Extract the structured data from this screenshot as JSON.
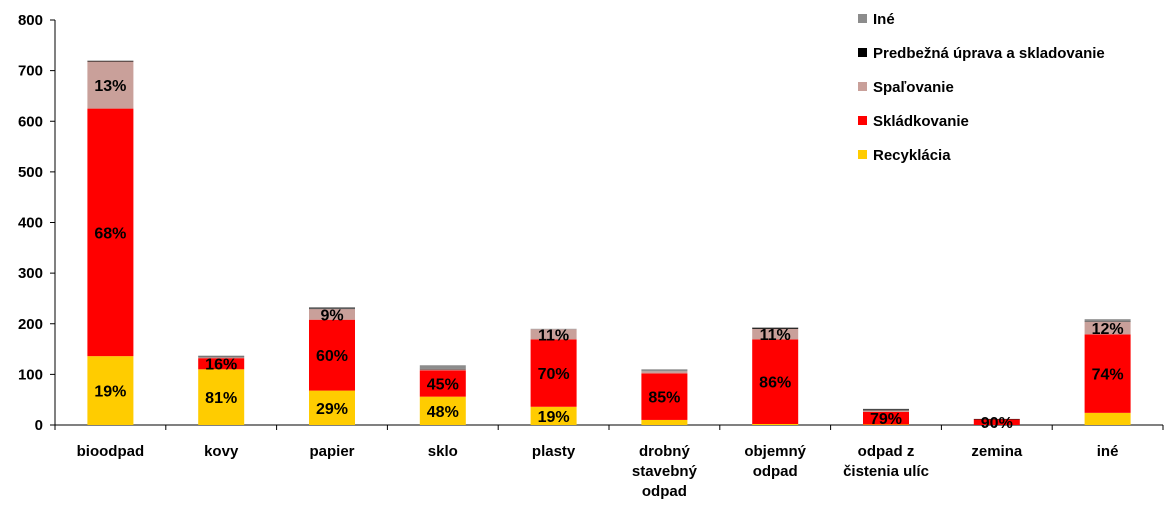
{
  "chart_data": {
    "type": "bar",
    "stacked": true,
    "categories": [
      [
        "bioodpad"
      ],
      [
        "kovy"
      ],
      [
        "papier"
      ],
      [
        "sklo"
      ],
      [
        "plasty"
      ],
      [
        "drobný",
        "stavebný",
        "odpad"
      ],
      [
        "objemný",
        "odpad"
      ],
      [
        "odpad z",
        "čistenia ulíc"
      ],
      [
        "zemina"
      ],
      [
        "iné"
      ]
    ],
    "series": [
      {
        "name": "Recyklácia",
        "color": "#FFCC00",
        "values": [
          136,
          110,
          68,
          56,
          36,
          10,
          2,
          1,
          0,
          24
        ],
        "labels": [
          "19%",
          "81%",
          "29%",
          "48%",
          "19%",
          "",
          "",
          "",
          "",
          ""
        ]
      },
      {
        "name": "Skládkovanie",
        "color": "#FF0000",
        "values": [
          489,
          22,
          140,
          52,
          133,
          92,
          167,
          25,
          11,
          155
        ],
        "labels": [
          "68%",
          "16%",
          "60%",
          "45%",
          "70%",
          "85%",
          "86%",
          "79%",
          "90%",
          "74%"
        ]
      },
      {
        "name": "Spaľovanie",
        "color": "#C9A09A",
        "values": [
          93,
          2,
          21,
          2,
          20,
          4,
          21,
          3,
          0,
          25
        ],
        "labels": [
          "13%",
          "",
          "9%",
          "",
          "11%",
          "",
          "11%",
          "",
          "",
          "12%"
        ]
      },
      {
        "name": "Predbežná úprava a skladovanie",
        "color": "#000000",
        "values": [
          1,
          1,
          1,
          1,
          0,
          0,
          2,
          2,
          1,
          1
        ],
        "labels": [
          "",
          "",
          "",
          "",
          "",
          "",
          "",
          "",
          "",
          ""
        ]
      },
      {
        "name": "Iné",
        "color": "#8C8C8C",
        "values": [
          1,
          2,
          3,
          7,
          1,
          4,
          1,
          1,
          0,
          4
        ],
        "labels": [
          "",
          "",
          "",
          "",
          "",
          "",
          "",
          "",
          "",
          ""
        ]
      }
    ],
    "yticks": [
      0,
      100,
      200,
      300,
      400,
      500,
      600,
      700,
      800
    ],
    "ylim": [
      0,
      800
    ],
    "legend_order": [
      4,
      3,
      2,
      1,
      0
    ],
    "legend_position": "top-right",
    "grid": false
  }
}
